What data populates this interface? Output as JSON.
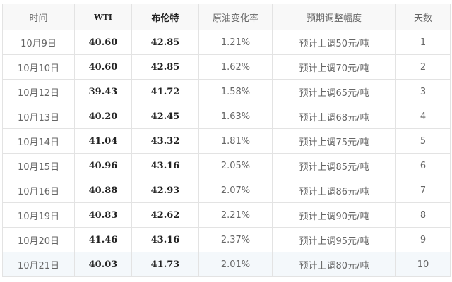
{
  "table": {
    "headers": [
      "时间",
      "WTI",
      "布伦特",
      "原油变化率",
      "预期调整幅度",
      "天数"
    ],
    "rows": [
      [
        "10月9日",
        "40.60",
        "42.85",
        "1.21%",
        "预计上调50元/吨",
        "1"
      ],
      [
        "10月10日",
        "40.60",
        "42.85",
        "1.62%",
        "预计上调70元/吨",
        "2"
      ],
      [
        "10月12日",
        "39.43",
        "41.72",
        "1.58%",
        "预计上调65元/吨",
        "3"
      ],
      [
        "10月13日",
        "40.20",
        "42.45",
        "1.63%",
        "预计上调68元/吨",
        "4"
      ],
      [
        "10月14日",
        "41.04",
        "43.32",
        "1.81%",
        "预计上调75元/吨",
        "5"
      ],
      [
        "10月15日",
        "40.96",
        "43.16",
        "2.05%",
        "预计上调85元/吨",
        "6"
      ],
      [
        "10月16日",
        "40.88",
        "42.93",
        "2.07%",
        "预计上调86元/吨",
        "7"
      ],
      [
        "10月19日",
        "40.83",
        "42.62",
        "2.21%",
        "预计上调90元/吨",
        "8"
      ],
      [
        "10月20日",
        "41.46",
        "43.16",
        "2.37%",
        "预计上调95元/吨",
        "9"
      ],
      [
        "10月21日",
        "40.03",
        "41.73",
        "2.01%",
        "预计上调80元/吨",
        "10"
      ]
    ]
  }
}
